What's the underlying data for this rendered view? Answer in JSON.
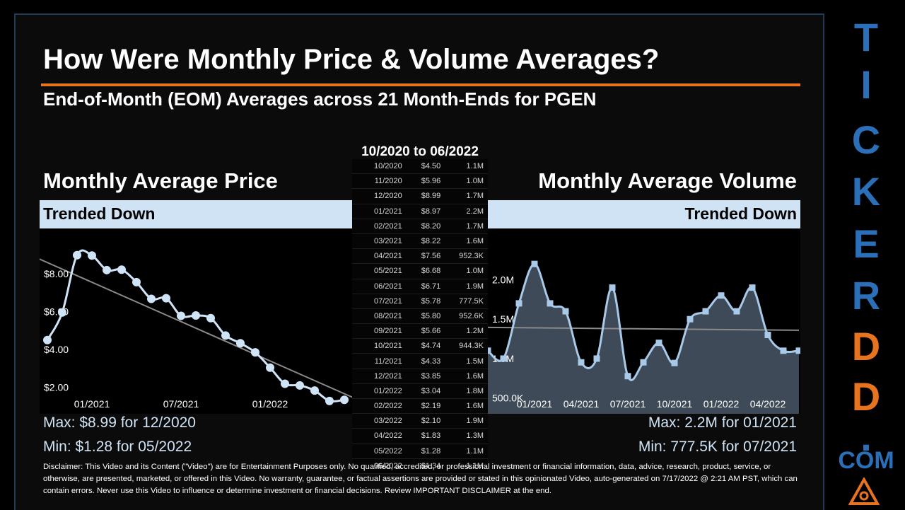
{
  "header": {
    "title": "How Were Monthly Price & Volume Averages?",
    "subtitle": "End-of-Month (EOM) Averages across 21 Month-Ends for PGEN"
  },
  "price_panel": {
    "title": "Monthly Average Price",
    "trend": "Trended Down",
    "max_text": "Max: $8.99 for 12/2020",
    "min_text": "Min: $1.28 for 05/2022"
  },
  "volume_panel": {
    "title": "Monthly Average Volume",
    "trend": "Trended Down",
    "max_text": "Max: 2.2M for 01/2021",
    "min_text": "Min: 777.5K for 07/2021"
  },
  "table": {
    "header": "10/2020 to 06/2022",
    "rows": [
      {
        "month": "10/2020",
        "price": "$4.50",
        "volume": "1.1M"
      },
      {
        "month": "11/2020",
        "price": "$5.96",
        "volume": "1.0M"
      },
      {
        "month": "12/2020",
        "price": "$8.99",
        "volume": "1.7M"
      },
      {
        "month": "01/2021",
        "price": "$8.97",
        "volume": "2.2M"
      },
      {
        "month": "02/2021",
        "price": "$8.20",
        "volume": "1.7M"
      },
      {
        "month": "03/2021",
        "price": "$8.22",
        "volume": "1.6M"
      },
      {
        "month": "04/2021",
        "price": "$7.56",
        "volume": "952.3K"
      },
      {
        "month": "05/2021",
        "price": "$6.68",
        "volume": "1.0M"
      },
      {
        "month": "06/2021",
        "price": "$6.71",
        "volume": "1.9M"
      },
      {
        "month": "07/2021",
        "price": "$5.78",
        "volume": "777.5K"
      },
      {
        "month": "08/2021",
        "price": "$5.80",
        "volume": "952.6K"
      },
      {
        "month": "09/2021",
        "price": "$5.66",
        "volume": "1.2M"
      },
      {
        "month": "10/2021",
        "price": "$4.74",
        "volume": "944.3K"
      },
      {
        "month": "11/2021",
        "price": "$4.33",
        "volume": "1.5M"
      },
      {
        "month": "12/2021",
        "price": "$3.85",
        "volume": "1.6M"
      },
      {
        "month": "01/2022",
        "price": "$3.04",
        "volume": "1.8M"
      },
      {
        "month": "02/2022",
        "price": "$2.19",
        "volume": "1.6M"
      },
      {
        "month": "03/2022",
        "price": "$2.10",
        "volume": "1.9M"
      },
      {
        "month": "04/2022",
        "price": "$1.83",
        "volume": "1.3M"
      },
      {
        "month": "05/2022",
        "price": "$1.28",
        "volume": "1.1M"
      },
      {
        "month": "06/2022",
        "price": "$1.34",
        "volume": "1.1M"
      }
    ]
  },
  "chart_data": [
    {
      "type": "line",
      "title": "Monthly Average Price",
      "x": [
        "10/2020",
        "11/2020",
        "12/2020",
        "01/2021",
        "02/2021",
        "03/2021",
        "04/2021",
        "05/2021",
        "06/2021",
        "07/2021",
        "08/2021",
        "09/2021",
        "10/2021",
        "11/2021",
        "12/2021",
        "01/2022",
        "02/2022",
        "03/2022",
        "04/2022",
        "05/2022",
        "06/2022"
      ],
      "series": [
        {
          "values": [
            4.5,
            5.96,
            8.99,
            8.97,
            8.2,
            8.22,
            7.56,
            6.68,
            6.71,
            5.78,
            5.8,
            5.66,
            4.74,
            4.33,
            3.85,
            3.04,
            2.19,
            2.1,
            1.83,
            1.28,
            1.34
          ]
        }
      ],
      "trendline": true,
      "y_ticks": [
        "$2.00",
        "$4.00",
        "$6.00",
        "$8.00"
      ],
      "y_tick_values": [
        2,
        4,
        6,
        8
      ],
      "x_ticks": [
        "01/2021",
        "07/2021",
        "01/2022"
      ],
      "x_tick_index": [
        3,
        9,
        15
      ],
      "ylim": [
        0.6,
        10.4
      ],
      "grid": false,
      "colors": {
        "line": "#d0e4f7",
        "marker": "#d0e4f7",
        "trend": "#8a8a8a",
        "background": "#000000"
      }
    },
    {
      "type": "area",
      "title": "Monthly Average Volume",
      "x": [
        "10/2020",
        "11/2020",
        "12/2020",
        "01/2021",
        "02/2021",
        "03/2021",
        "04/2021",
        "05/2021",
        "06/2021",
        "07/2021",
        "08/2021",
        "09/2021",
        "10/2021",
        "11/2021",
        "12/2021",
        "01/2022",
        "02/2022",
        "03/2022",
        "04/2022",
        "05/2022",
        "06/2022"
      ],
      "series": [
        {
          "values": [
            1.1,
            1.0,
            1.7,
            2.2,
            1.7,
            1.6,
            0.9523,
            1.0,
            1.9,
            0.7775,
            0.9526,
            1.2,
            0.9443,
            1.5,
            1.6,
            1.8,
            1.6,
            1.9,
            1.3,
            1.1,
            1.1
          ]
        }
      ],
      "units": "M",
      "trendline": true,
      "y_ticks": [
        "500.0K",
        "1.0M",
        "1.5M",
        "2.0M"
      ],
      "y_tick_values": [
        0.5,
        1.0,
        1.5,
        2.0
      ],
      "x_ticks": [
        "01/2021",
        "04/2021",
        "07/2021",
        "10/2021",
        "01/2022",
        "04/2022"
      ],
      "x_tick_index": [
        3,
        6,
        9,
        12,
        15,
        18
      ],
      "ylim": [
        0.3,
        2.65
      ],
      "grid": false,
      "colors": {
        "line": "#a9c9e8",
        "marker": "#a9c9e8",
        "fill": "#3e4a57",
        "trend": "#8a8a8a",
        "background": "#000000"
      }
    }
  ],
  "disclaimer": "Disclaimer: This Video and its Content (\"Video\") are for Entertainment Purposes only. No qualified, accredited, or professional investment or financial information, data, advice, research, product, service, or otherwise, are presented, marketed, or offered in this Video. No warranty, guarantee, or factual assertions are provided or stated in this opinionated Video, auto-generated on 7/17/2022 @ 2:21 AM PST, which can contain errors. Never use this Video to influence or determine investment or financial decisions. Review IMPORTANT DISCLAIMER at the end.",
  "brand": {
    "letters": [
      "T",
      "I",
      "C",
      "K",
      "E",
      "R",
      "D",
      "D",
      "."
    ],
    "letter_colors": [
      "#2a6fb7",
      "#2a6fb7",
      "#2a6fb7",
      "#2a6fb7",
      "#2a6fb7",
      "#2a6fb7",
      "#e8731f",
      "#e8731f",
      "#2a6fb7"
    ],
    "com": "COM",
    "logo_color": "#e8731f"
  }
}
